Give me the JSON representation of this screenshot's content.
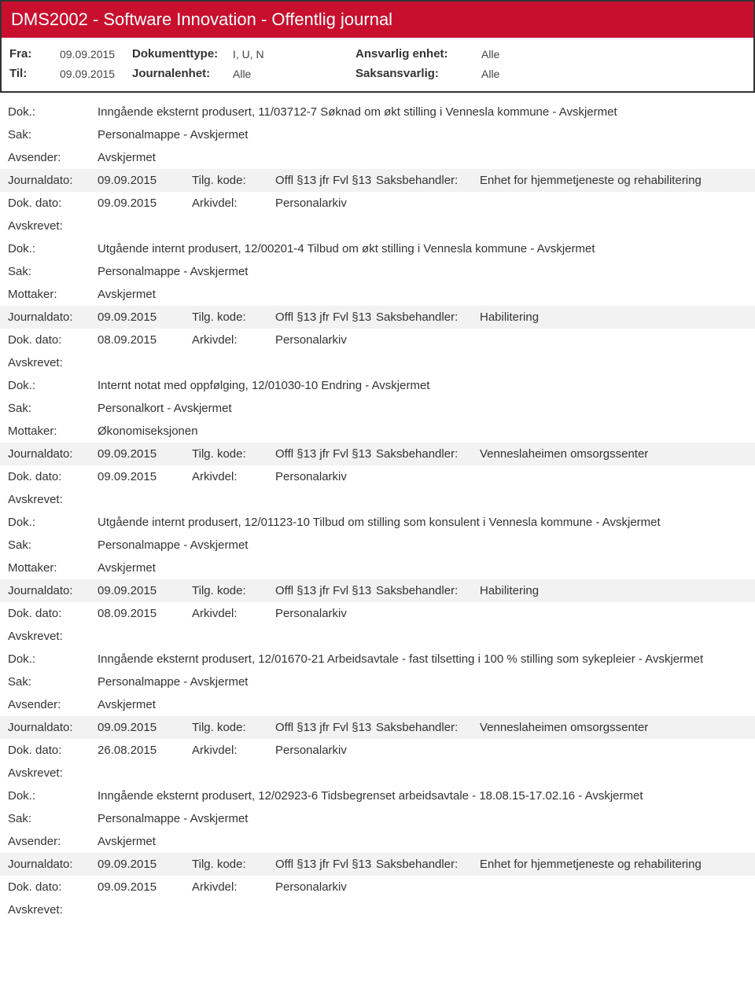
{
  "header": {
    "title": "DMS2002 - Software Innovation - Offentlig journal"
  },
  "meta": {
    "fra_label": "Fra:",
    "fra_value": "09.09.2015",
    "til_label": "Til:",
    "til_value": "09.09.2015",
    "doktype_label": "Dokumenttype:",
    "doktype_value": "I, U, N",
    "journalenhet_label": "Journalenhet:",
    "journalenhet_value": "Alle",
    "ansvarlig_label": "Ansvarlig enhet:",
    "ansvarlig_value": "Alle",
    "saksansvarlig_label": "Saksansvarlig:",
    "saksansvarlig_value": "Alle"
  },
  "labels": {
    "dok": "Dok.:",
    "sak": "Sak:",
    "avsender": "Avsender:",
    "mottaker": "Mottaker:",
    "journaldato": "Journaldato:",
    "dokdato": "Dok. dato:",
    "tilgkode": "Tilg. kode:",
    "arkivdel": "Arkivdel:",
    "saksbehandler": "Saksbehandler:",
    "avskrevet": "Avskrevet:"
  },
  "entries": [
    {
      "dok": "Inngående eksternt produsert, 11/03712-7 Søknad om økt stilling i Vennesla kommune - Avskjermet",
      "sak": "Personalmappe - Avskjermet",
      "party_label": "Avsender:",
      "party": "Avskjermet",
      "journaldato": "09.09.2015",
      "tilgkode": "Offl §13 jfr Fvl §13",
      "saksbehandler": "Enhet for hjemmetjeneste og rehabilitering",
      "dokdato": "09.09.2015",
      "arkivdel": "Personalarkiv"
    },
    {
      "dok": "Utgående internt produsert, 12/00201-4 Tilbud om økt stilling i Vennesla kommune - Avskjermet",
      "sak": "Personalmappe - Avskjermet",
      "party_label": "Mottaker:",
      "party": "Avskjermet",
      "journaldato": "09.09.2015",
      "tilgkode": "Offl §13 jfr Fvl §13",
      "saksbehandler": "Habilitering",
      "dokdato": "08.09.2015",
      "arkivdel": "Personalarkiv"
    },
    {
      "dok": "Internt notat med oppfølging, 12/01030-10 Endring - Avskjermet",
      "sak": "Personalkort - Avskjermet",
      "party_label": "Mottaker:",
      "party": "Økonomiseksjonen",
      "journaldato": "09.09.2015",
      "tilgkode": "Offl §13 jfr Fvl §13",
      "saksbehandler": "Venneslaheimen omsorgssenter",
      "dokdato": "09.09.2015",
      "arkivdel": "Personalarkiv"
    },
    {
      "dok": "Utgående internt produsert, 12/01123-10 Tilbud om stilling som konsulent i Vennesla kommune - Avskjermet",
      "sak": "Personalmappe - Avskjermet",
      "party_label": "Mottaker:",
      "party": "Avskjermet",
      "journaldato": "09.09.2015",
      "tilgkode": "Offl §13 jfr Fvl §13",
      "saksbehandler": "Habilitering",
      "dokdato": "08.09.2015",
      "arkivdel": "Personalarkiv"
    },
    {
      "dok": "Inngående eksternt produsert, 12/01670-21 Arbeidsavtale - fast tilsetting i 100 % stilling som sykepleier - Avskjermet",
      "sak": "Personalmappe - Avskjermet",
      "party_label": "Avsender:",
      "party": "Avskjermet",
      "journaldato": "09.09.2015",
      "tilgkode": "Offl §13 jfr Fvl §13",
      "saksbehandler": "Venneslaheimen omsorgssenter",
      "dokdato": "26.08.2015",
      "arkivdel": "Personalarkiv"
    },
    {
      "dok": "Inngående eksternt produsert, 12/02923-6 Tidsbegrenset arbeidsavtale - 18.08.15-17.02.16 - Avskjermet",
      "sak": "Personalmappe - Avskjermet",
      "party_label": "Avsender:",
      "party": "Avskjermet",
      "journaldato": "09.09.2015",
      "tilgkode": "Offl §13 jfr Fvl §13",
      "saksbehandler": "Enhet for hjemmetjeneste og rehabilitering",
      "dokdato": "09.09.2015",
      "arkivdel": "Personalarkiv"
    }
  ]
}
